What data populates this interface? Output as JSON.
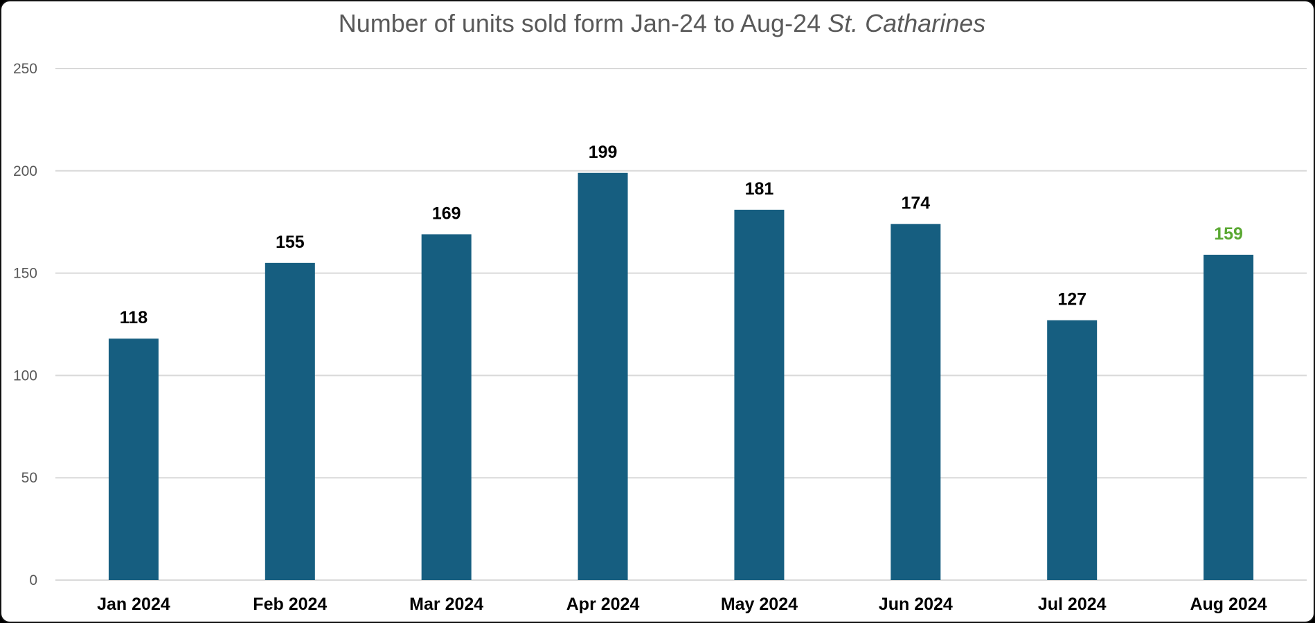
{
  "chart_data": {
    "type": "bar",
    "title": "Number of units sold form Jan-24 to Aug-24",
    "title_emphasis": "St. Catharines",
    "categories": [
      "Jan 2024",
      "Feb 2024",
      "Mar 2024",
      "Apr 2024",
      "May 2024",
      "Jun 2024",
      "Jul 2024",
      "Aug 2024"
    ],
    "values": [
      118,
      155,
      169,
      199,
      181,
      174,
      127,
      159
    ],
    "data_labels": [
      "118",
      "155",
      "169",
      "199",
      "181",
      "174",
      "127",
      "159"
    ],
    "ylim": [
      0,
      250
    ],
    "yticks": [
      0,
      50,
      100,
      150,
      200,
      250
    ],
    "grid": true,
    "legend": "none",
    "xlabel": "",
    "ylabel": "",
    "colors": {
      "bar": "#165E80",
      "label": "#000000",
      "highlight_label": "#5AA832",
      "grid": "#D9D9D9"
    },
    "highlight_index": 7
  }
}
